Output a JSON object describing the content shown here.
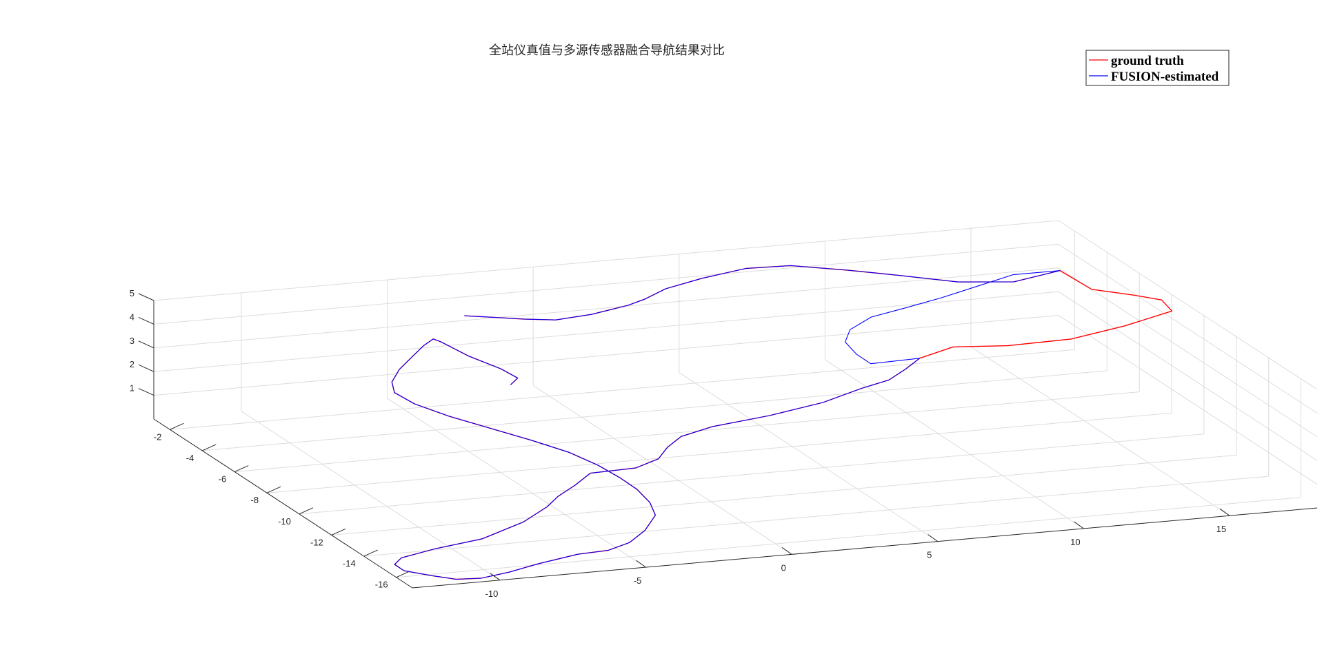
{
  "chart_data": {
    "type": "line3d",
    "title": "全站仪真值与多源传感器融合导航结果对比",
    "legend": {
      "placement": "top-right",
      "entries": [
        {
          "label": "ground truth",
          "color": "#ff0000"
        },
        {
          "label": "FUSION-estimated",
          "color": "#0000ff"
        }
      ]
    },
    "grid": true,
    "xlim": [
      -13,
      18
    ],
    "ylim": [
      -17,
      -1
    ],
    "zlim": [
      0,
      5
    ],
    "x_ticks": [
      -10,
      -5,
      0,
      5,
      10,
      15
    ],
    "y_ticks": [
      -2,
      -4,
      -6,
      -8,
      -10,
      -12,
      -14,
      -16
    ],
    "z_ticks": [
      1,
      2,
      3,
      4,
      5
    ],
    "x_tick_labels": [
      "-10",
      "-5",
      "0",
      "5",
      "10",
      "15"
    ],
    "y_tick_labels": [
      "-2",
      "-4",
      "-6",
      "-8",
      "-10",
      "-12",
      "-14",
      "-16"
    ],
    "z_tick_labels": [
      "1",
      "2",
      "3",
      "4",
      "5"
    ],
    "series": [
      {
        "name": "ground truth",
        "color": "#ff0000",
        "points": [
          [
            -2.9,
            -2.0,
            3.7
          ],
          [
            -2.4,
            -2.7,
            3.9
          ],
          [
            -1.7,
            -3.5,
            4.1
          ],
          [
            -1.0,
            -4.2,
            4.3
          ],
          [
            0.0,
            -4.6,
            4.6
          ],
          [
            1.2,
            -4.7,
            4.9
          ],
          [
            1.9,
            -4.5,
            5.0
          ],
          [
            3.1,
            -3.6,
            4.9
          ],
          [
            4.9,
            -2.6,
            4.7
          ],
          [
            6.9,
            -1.7,
            4.5
          ],
          [
            8.5,
            -1.6,
            4.4
          ],
          [
            10.1,
            -2.2,
            4.3
          ],
          [
            11.4,
            -3.0,
            4.3
          ],
          [
            13.0,
            -3.8,
            4.2
          ],
          [
            14.7,
            -4.2,
            4.2
          ],
          [
            16.5,
            -3.8,
            4.3
          ],
          [
            16.7,
            -5.4,
            4.2
          ],
          [
            17.6,
            -6.4,
            4.3
          ],
          [
            18.1,
            -7.2,
            4.4
          ],
          [
            17.9,
            -8.2,
            4.4
          ],
          [
            16.0,
            -8.7,
            4.2
          ],
          [
            14.0,
            -9.0,
            4.0
          ],
          [
            12.0,
            -8.7,
            3.8
          ],
          [
            10.4,
            -8.2,
            3.7
          ],
          [
            9.2,
            -8.3,
            3.4
          ],
          [
            8.5,
            -8.7,
            3.2
          ],
          [
            7.7,
            -9.1,
            3.0
          ],
          [
            6.6,
            -9.4,
            2.9
          ],
          [
            5.0,
            -9.9,
            2.7
          ],
          [
            3.0,
            -10.2,
            2.5
          ],
          [
            1.0,
            -10.3,
            2.3
          ],
          [
            -0.3,
            -10.7,
            2.2
          ],
          [
            -1.1,
            -11.3,
            2.1
          ],
          [
            -1.8,
            -12.0,
            2.0
          ],
          [
            -2.8,
            -12.4,
            1.9
          ],
          [
            -4.3,
            -12.3,
            1.8
          ],
          [
            -5.1,
            -12.8,
            1.6
          ],
          [
            -5.9,
            -13.2,
            1.4
          ],
          [
            -6.5,
            -13.6,
            1.2
          ],
          [
            -7.7,
            -14.3,
            1.0
          ],
          [
            -9.5,
            -15.0,
            0.8
          ],
          [
            -11.3,
            -15.3,
            0.7
          ],
          [
            -12.6,
            -15.6,
            0.6
          ],
          [
            -13.0,
            -15.9,
            0.5
          ],
          [
            -12.9,
            -16.3,
            0.4
          ],
          [
            -12.2,
            -16.7,
            0.3
          ],
          [
            -11.5,
            -17.0,
            0.2
          ],
          [
            -10.7,
            -17.1,
            0.2
          ],
          [
            -9.7,
            -17.0,
            0.3
          ],
          [
            -8.5,
            -16.7,
            0.4
          ],
          [
            -7.0,
            -16.4,
            0.5
          ],
          [
            -5.9,
            -16.3,
            0.5
          ],
          [
            -5.0,
            -16.0,
            0.6
          ],
          [
            -4.2,
            -15.5,
            0.8
          ],
          [
            -3.4,
            -14.7,
            1.0
          ],
          [
            -3.2,
            -14.0,
            1.2
          ],
          [
            -3.2,
            -13.2,
            1.4
          ],
          [
            -3.4,
            -12.5,
            1.6
          ],
          [
            -3.7,
            -11.7,
            1.8
          ],
          [
            -4.2,
            -10.8,
            2.0
          ],
          [
            -5.0,
            -9.9,
            2.2
          ],
          [
            -5.9,
            -9.0,
            2.4
          ],
          [
            -6.8,
            -8.1,
            2.6
          ],
          [
            -7.5,
            -7.2,
            2.8
          ],
          [
            -7.8,
            -6.5,
            3.0
          ],
          [
            -7.5,
            -5.8,
            3.1
          ],
          [
            -6.8,
            -5.0,
            3.2
          ],
          [
            -5.9,
            -4.2,
            3.3
          ],
          [
            -5.2,
            -3.6,
            3.4
          ],
          [
            -4.7,
            -3.3,
            3.5
          ],
          [
            -4.6,
            -3.6,
            3.5
          ],
          [
            -4.2,
            -4.6,
            3.3
          ],
          [
            -3.6,
            -5.5,
            3.1
          ],
          [
            -3.3,
            -6.0,
            2.9
          ],
          [
            -3.7,
            -6.3,
            2.8
          ]
        ]
      },
      {
        "name": "FUSION-estimated",
        "color": "#0000ff",
        "points": [
          [
            -2.9,
            -2.0,
            3.7
          ],
          [
            -2.4,
            -2.7,
            3.9
          ],
          [
            -1.7,
            -3.5,
            4.1
          ],
          [
            -1.0,
            -4.2,
            4.3
          ],
          [
            0.0,
            -4.6,
            4.6
          ],
          [
            1.2,
            -4.7,
            4.9
          ],
          [
            1.9,
            -4.5,
            5.0
          ],
          [
            3.1,
            -3.6,
            4.9
          ],
          [
            4.9,
            -2.6,
            4.7
          ],
          [
            6.9,
            -1.7,
            4.5
          ],
          [
            8.5,
            -1.6,
            4.4
          ],
          [
            10.1,
            -2.2,
            4.3
          ],
          [
            11.4,
            -3.0,
            4.3
          ],
          [
            13.0,
            -3.8,
            4.2
          ],
          [
            14.7,
            -4.2,
            4.2
          ],
          [
            16.5,
            -3.8,
            4.3
          ],
          [
            15.0,
            -3.6,
            4.2
          ],
          [
            13.5,
            -4.1,
            4.1
          ],
          [
            12.0,
            -4.6,
            4.0
          ],
          [
            10.5,
            -5.0,
            3.9
          ],
          [
            9.2,
            -5.3,
            3.8
          ],
          [
            8.2,
            -5.8,
            3.6
          ],
          [
            7.7,
            -6.4,
            3.4
          ],
          [
            7.7,
            -7.1,
            3.2
          ],
          [
            7.8,
            -7.8,
            3.1
          ],
          [
            9.2,
            -8.3,
            3.4
          ],
          [
            8.5,
            -8.7,
            3.2
          ],
          [
            7.7,
            -9.1,
            3.0
          ],
          [
            6.6,
            -9.4,
            2.9
          ],
          [
            5.0,
            -9.9,
            2.7
          ],
          [
            3.0,
            -10.2,
            2.5
          ],
          [
            1.0,
            -10.3,
            2.3
          ],
          [
            -0.3,
            -10.7,
            2.2
          ],
          [
            -1.1,
            -11.3,
            2.1
          ],
          [
            -1.8,
            -12.0,
            2.0
          ],
          [
            -2.8,
            -12.4,
            1.9
          ],
          [
            -4.3,
            -12.3,
            1.8
          ],
          [
            -5.1,
            -12.8,
            1.6
          ],
          [
            -5.9,
            -13.2,
            1.4
          ],
          [
            -6.5,
            -13.6,
            1.2
          ],
          [
            -7.7,
            -14.3,
            1.0
          ],
          [
            -9.5,
            -15.0,
            0.8
          ],
          [
            -11.3,
            -15.3,
            0.7
          ],
          [
            -12.6,
            -15.6,
            0.6
          ],
          [
            -13.0,
            -15.9,
            0.5
          ],
          [
            -12.9,
            -16.3,
            0.4
          ],
          [
            -12.2,
            -16.7,
            0.3
          ],
          [
            -11.5,
            -17.0,
            0.2
          ],
          [
            -10.7,
            -17.1,
            0.2
          ],
          [
            -9.7,
            -17.0,
            0.3
          ],
          [
            -8.5,
            -16.7,
            0.4
          ],
          [
            -7.0,
            -16.4,
            0.5
          ],
          [
            -5.9,
            -16.3,
            0.5
          ],
          [
            -5.0,
            -16.0,
            0.6
          ],
          [
            -4.2,
            -15.5,
            0.8
          ],
          [
            -3.4,
            -14.7,
            1.0
          ],
          [
            -3.2,
            -14.0,
            1.2
          ],
          [
            -3.2,
            -13.2,
            1.4
          ],
          [
            -3.4,
            -12.5,
            1.6
          ],
          [
            -3.7,
            -11.7,
            1.8
          ],
          [
            -4.2,
            -10.8,
            2.0
          ],
          [
            -5.0,
            -9.9,
            2.2
          ],
          [
            -5.9,
            -9.0,
            2.4
          ],
          [
            -6.8,
            -8.1,
            2.6
          ],
          [
            -7.5,
            -7.2,
            2.8
          ],
          [
            -7.8,
            -6.5,
            3.0
          ],
          [
            -7.5,
            -5.8,
            3.1
          ],
          [
            -6.8,
            -5.0,
            3.2
          ],
          [
            -5.9,
            -4.2,
            3.3
          ],
          [
            -5.2,
            -3.6,
            3.4
          ],
          [
            -4.7,
            -3.3,
            3.5
          ],
          [
            -4.6,
            -3.6,
            3.5
          ],
          [
            -4.2,
            -4.6,
            3.3
          ],
          [
            -3.6,
            -5.5,
            3.1
          ],
          [
            -3.3,
            -6.0,
            2.9
          ],
          [
            -3.7,
            -6.3,
            2.8
          ]
        ]
      }
    ]
  }
}
